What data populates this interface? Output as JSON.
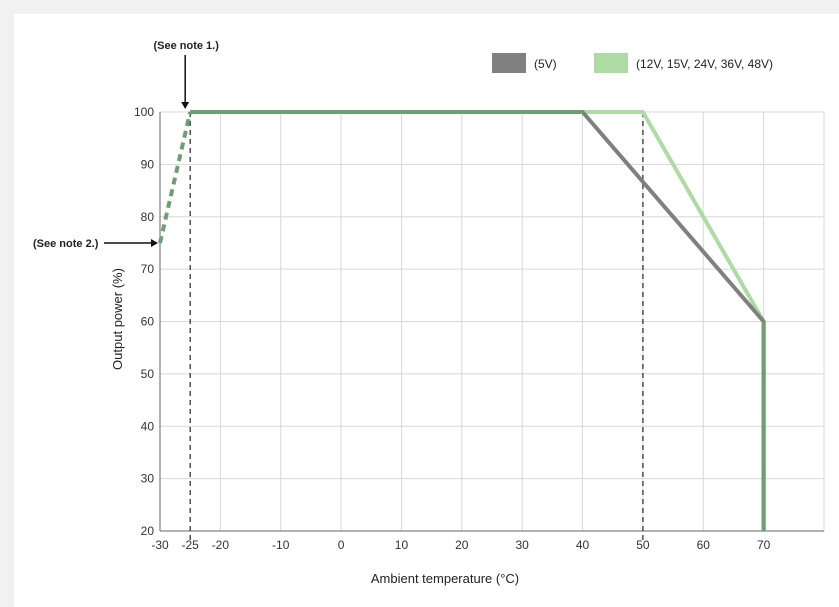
{
  "chart_data": {
    "type": "line",
    "xlabel": "Ambient temperature (°C)",
    "ylabel": "Output power (%)",
    "xlim": [
      -30,
      80
    ],
    "ylim": [
      20,
      100
    ],
    "x_ticks": [
      -30,
      -25,
      -20,
      -10,
      0,
      10,
      20,
      30,
      40,
      50,
      60,
      70
    ],
    "x_tick_labels": [
      "-30",
      "-25",
      "-20",
      "-10",
      "0",
      "10",
      "20",
      "30",
      "40",
      "50",
      "60",
      "70"
    ],
    "y_ticks": [
      20,
      30,
      40,
      50,
      60,
      70,
      80,
      90,
      100
    ],
    "y_tick_labels": [
      "20",
      "30",
      "40",
      "50",
      "60",
      "70",
      "80",
      "90",
      "100"
    ],
    "grid": true,
    "legend_position": "top-right",
    "vertical_reference_lines": [
      -25,
      50
    ],
    "series": [
      {
        "name": "(5V)",
        "color": "#808080",
        "points": [
          [
            -25,
            100
          ],
          [
            40,
            100
          ],
          [
            70,
            60
          ],
          [
            70,
            20
          ]
        ],
        "dashed_points": [
          [
            -30,
            75
          ],
          [
            -25,
            100
          ]
        ]
      },
      {
        "name": "(12V, 15V, 24V, 36V, 48V)",
        "color": "#aedba4",
        "points": [
          [
            -25,
            100
          ],
          [
            50,
            100
          ],
          [
            70,
            60
          ],
          [
            70,
            20
          ]
        ],
        "dashed_points": [
          [
            -30,
            75
          ],
          [
            -25,
            100
          ]
        ]
      }
    ],
    "overlap_color": "#6f9d74",
    "annotations": [
      {
        "text": "(See note 1.)",
        "x": -25,
        "y": 100,
        "direction": "down"
      },
      {
        "text": "(See note 2.)",
        "x": -30,
        "y": 75,
        "direction": "right"
      }
    ]
  }
}
